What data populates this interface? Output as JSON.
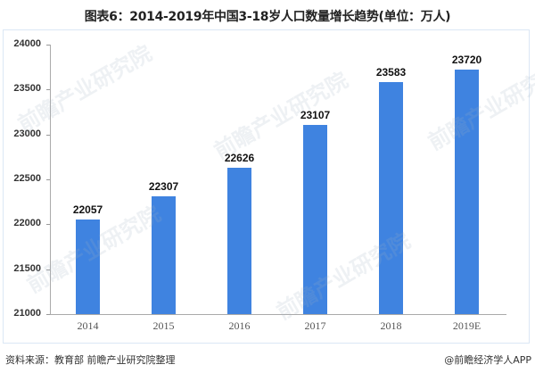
{
  "title": "图表6：2014-2019年中国3-18岁人口数量增长趋势(单位：万人)",
  "footer": {
    "source": "资料来源：教育部 前瞻产业研究院整理",
    "credit": "@前瞻经济学人APP"
  },
  "watermark": "前瞻产业研究院",
  "colors": {
    "bar": "#3f83e0",
    "frame": "#dbe7f5"
  },
  "chart_data": {
    "type": "bar",
    "title": "图表6：2014-2019年中国3-18岁人口数量增长趋势(单位：万人)",
    "xlabel": "",
    "ylabel": "",
    "categories": [
      "2014",
      "2015",
      "2016",
      "2017",
      "2018",
      "2019E"
    ],
    "values": [
      22057,
      22307,
      22626,
      23107,
      23583,
      23720
    ],
    "ylim": [
      21000,
      24000
    ],
    "yticks": [
      21000,
      21500,
      22000,
      22500,
      23000,
      23500,
      24000
    ],
    "grid": false,
    "legend": null,
    "unit": "万人"
  }
}
